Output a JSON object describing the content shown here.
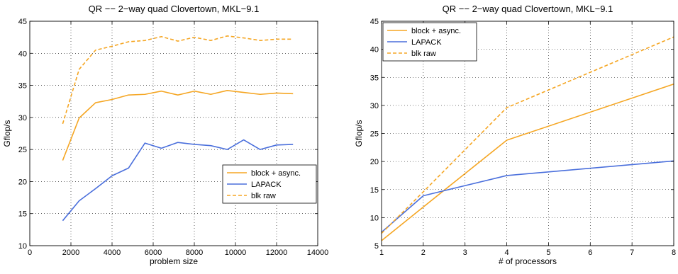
{
  "colors": {
    "orange": "#f5a623",
    "blue": "#4a6fdc"
  },
  "chart_data": [
    {
      "type": "line",
      "title": "QR −− 2−way quad Clovertown, MKL−9.1",
      "xlabel": "problem size",
      "ylabel": "Gflop/s",
      "xlim": [
        0,
        14000
      ],
      "ylim": [
        10,
        45
      ],
      "xticks": [
        0,
        2000,
        4000,
        6000,
        8000,
        10000,
        12000,
        14000
      ],
      "yticks": [
        10,
        15,
        20,
        25,
        30,
        35,
        40,
        45
      ],
      "xtick_labels": [
        "0",
        "2000",
        "4000",
        "6000",
        "8000",
        "10000",
        "12000",
        "14000"
      ],
      "ytick_labels": [
        "10",
        "15",
        "20",
        "25",
        "30",
        "35",
        "40",
        "45"
      ],
      "grid": true,
      "legend_position": "lower-right",
      "series": [
        {
          "name": "block + async.",
          "style": "solid",
          "color": "orange",
          "x": [
            1600,
            2400,
            3200,
            4000,
            4800,
            5600,
            6400,
            7200,
            8000,
            8800,
            9600,
            10400,
            11200,
            12000,
            12800
          ],
          "y": [
            23.3,
            29.9,
            32.3,
            32.8,
            33.5,
            33.6,
            34.1,
            33.5,
            34.1,
            33.6,
            34.2,
            33.9,
            33.6,
            33.8,
            33.7
          ]
        },
        {
          "name": "LAPACK",
          "style": "solid",
          "color": "blue",
          "x": [
            1600,
            2400,
            3200,
            4000,
            4800,
            5600,
            6400,
            7200,
            8000,
            8800,
            9600,
            10400,
            11200,
            12000,
            12800
          ],
          "y": [
            13.9,
            17.0,
            18.9,
            20.9,
            22.1,
            26.0,
            25.2,
            26.1,
            25.8,
            25.6,
            25.0,
            26.5,
            25.0,
            25.7,
            25.8
          ]
        },
        {
          "name": "blk raw",
          "style": "dashed",
          "color": "orange",
          "x": [
            1600,
            2400,
            3200,
            4000,
            4800,
            5600,
            6400,
            7200,
            8000,
            8800,
            9600,
            10400,
            11200,
            12000,
            12800
          ],
          "y": [
            29.0,
            37.5,
            40.5,
            41.1,
            41.8,
            42.0,
            42.6,
            41.9,
            42.5,
            42.0,
            42.7,
            42.4,
            42.0,
            42.2,
            42.2
          ]
        }
      ]
    },
    {
      "type": "line",
      "title": "QR −− 2−way quad Clovertown, MKL−9.1",
      "xlabel": "# of processors",
      "ylabel": "Gflop/s",
      "xlim": [
        1,
        8
      ],
      "ylim": [
        5,
        45
      ],
      "xticks": [
        1,
        2,
        3,
        4,
        5,
        6,
        7,
        8
      ],
      "yticks": [
        5,
        10,
        15,
        20,
        25,
        30,
        35,
        40,
        45
      ],
      "xtick_labels": [
        "1",
        "2",
        "3",
        "4",
        "5",
        "6",
        "7",
        "8"
      ],
      "ytick_labels": [
        "5",
        "10",
        "15",
        "20",
        "25",
        "30",
        "35",
        "40",
        "45"
      ],
      "grid": true,
      "legend_position": "top-left",
      "series": [
        {
          "name": "block + async.",
          "style": "solid",
          "color": "orange",
          "x": [
            1,
            2,
            4,
            8
          ],
          "y": [
            5.9,
            11.9,
            23.8,
            33.8
          ]
        },
        {
          "name": "LAPACK",
          "style": "solid",
          "color": "blue",
          "x": [
            1,
            2,
            4,
            8
          ],
          "y": [
            7.4,
            13.9,
            17.5,
            20.1
          ]
        },
        {
          "name": "blk raw",
          "style": "dashed",
          "color": "orange",
          "x": [
            1,
            2,
            4,
            8
          ],
          "y": [
            7.2,
            14.6,
            29.6,
            42.2
          ]
        }
      ]
    }
  ]
}
